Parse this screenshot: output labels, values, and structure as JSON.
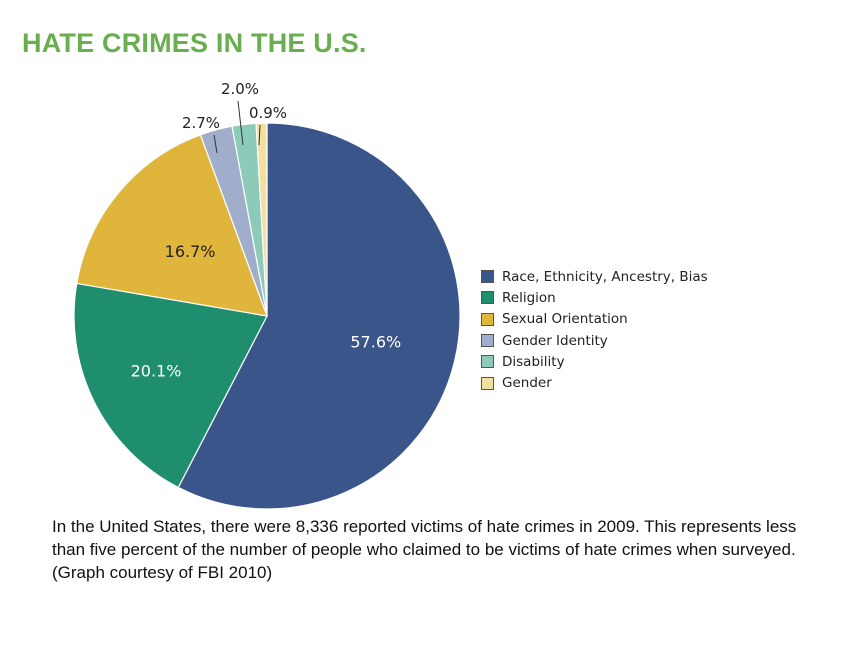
{
  "title": "HATE CRIMES IN THE U.S.",
  "caption": "In the United States, there were 8,336 reported victims of hate crimes in 2009. This represents less than five percent of the number of people who claimed to be victims of hate crimes when surveyed. (Graph courtesy of FBI 2010)",
  "chart_data": {
    "type": "pie",
    "title": "",
    "legend_position": "right",
    "slices": [
      {
        "name": "Race, Ethnicity, Ancestry, Bias",
        "value": 57.6,
        "label": "57.6%",
        "color": "#3a5589",
        "label_color": "#ffffff",
        "label_placement": "inside"
      },
      {
        "name": "Religion",
        "value": 20.1,
        "label": "20.1%",
        "color": "#1e8e6e",
        "label_color": "#ffffff",
        "label_placement": "inside"
      },
      {
        "name": "Sexual Orientation",
        "value": 16.7,
        "label": "16.7%",
        "color": "#e0b53c",
        "label_color": "#222222",
        "label_placement": "inside"
      },
      {
        "name": "Gender Identity",
        "value": 2.7,
        "label": "2.7%",
        "color": "#a0aecb",
        "label_color": "#222222",
        "label_placement": "outside"
      },
      {
        "name": "Disability",
        "value": 2.0,
        "label": "2.0%",
        "color": "#8ccbb9",
        "label_color": "#222222",
        "label_placement": "outside"
      },
      {
        "name": "Gender",
        "value": 0.9,
        "label": "0.9%",
        "color": "#f3dfa0",
        "label_color": "#222222",
        "label_placement": "outside"
      }
    ]
  }
}
